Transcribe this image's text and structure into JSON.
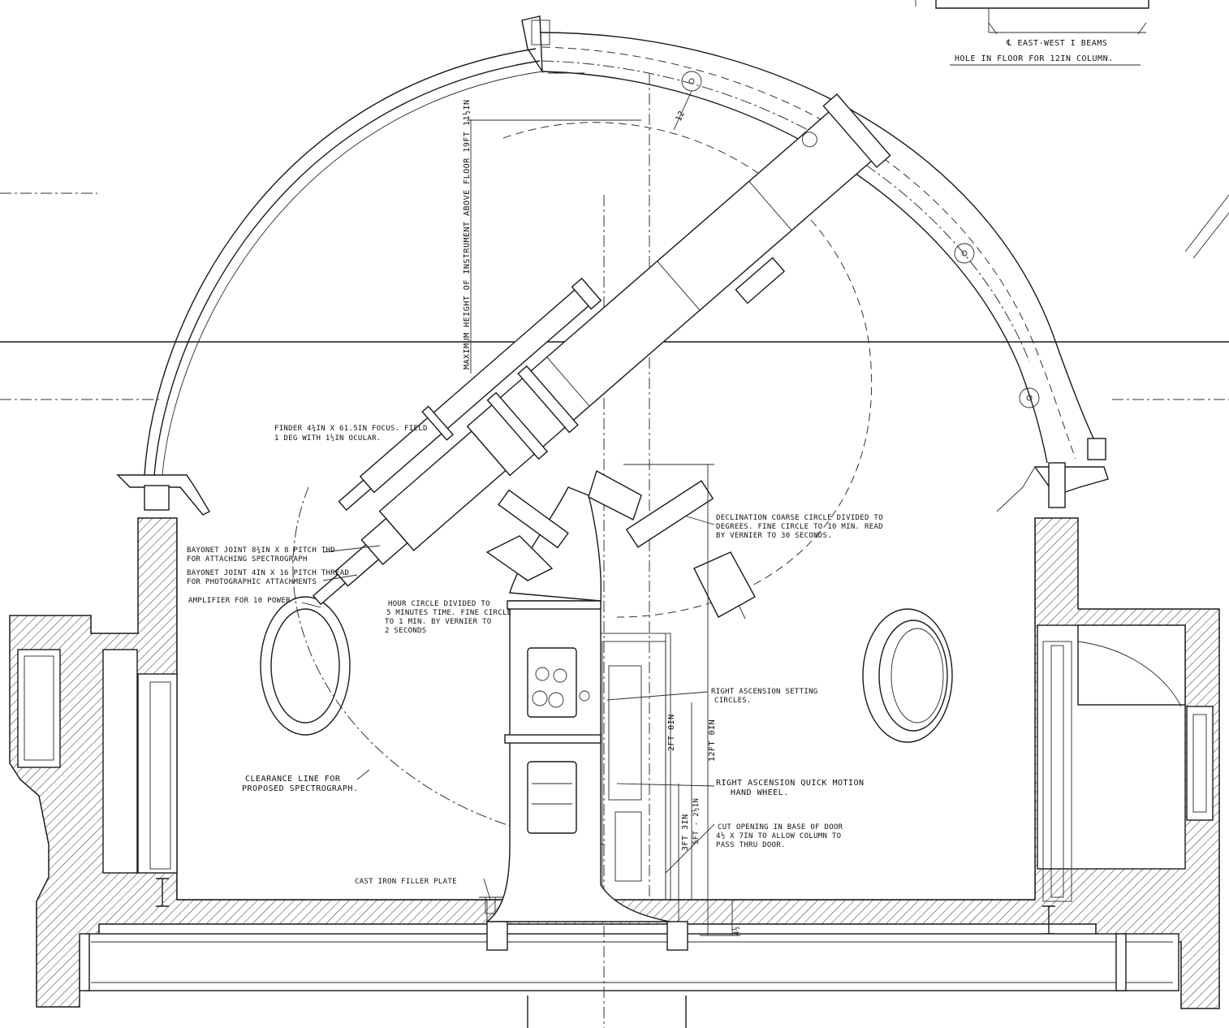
{
  "top_right": {
    "beam_label": "℄ EAST-WEST I BEAMS",
    "hole_label": "HOLE IN FLOOR FOR 12IN COLUMN."
  },
  "dimensions": {
    "max_height": "MAXIMUM HEIGHT OF INSTRUMENT ABOVE FLOOR 19FT 11½IN",
    "arc_radius": "12",
    "pier_height": "12FT 0IN",
    "ra_circle_height": "2FT 0IN",
    "handwheel_height": "3FT 3IN",
    "door_cut_height": "5FT - 2½IN",
    "floor_thickness": "4½"
  },
  "annotations": {
    "finder_1": "FINDER 4¾IN X 61.5IN FOCUS. FIELD",
    "finder_2": "1 DEG WITH 1½IN OCULAR.",
    "bayonet1_1": "BAYONET JOINT 8¾IN X 8 PITCH THD",
    "bayonet1_2": "FOR ATTACHING SPECTROGRAPH",
    "bayonet2_1": "BAYONET JOINT 4IN X 16 PITCH THREAD",
    "bayonet2_2": "FOR PHOTOGRAPHIC ATTACHMENTS",
    "amplifier": "AMPLIFIER FOR 10 POWER",
    "hour_1": "HOUR CIRCLE DIVIDED TO",
    "hour_2": "5 MINUTES TIME. FINE CIRCLE",
    "hour_3": "TO 1 MIN. BY VERNIER TO",
    "hour_4": "2 SECONDS",
    "decl_1": "DECLINATION COARSE CIRCLE DIVIDED TO",
    "decl_2": "DEGREES. FINE CIRCLE TO 10 MIN. READ",
    "decl_3": "BY VERNIER TO 30 SECONDS.",
    "ra_set_1": "RIGHT ASCENSION SETTING",
    "ra_set_2": "CIRCLES.",
    "ra_quick_1": "RIGHT ASCENSION QUICK MOTION",
    "ra_quick_2": "HAND WHEEL.",
    "cut_1": "CUT OPENING IN BASE OF DOOR",
    "cut_2": "4½ X 7IN TO ALLOW COLUMN TO",
    "cut_3": "PASS THRU DOOR.",
    "clearance_1": "CLEARANCE LINE FOR",
    "clearance_2": "PROPOSED SPECTROGRAPH.",
    "filler": "CAST IRON FILLER PLATE"
  },
  "colors": {
    "ink": "#1a1a1a",
    "paper": "#ffffff"
  }
}
